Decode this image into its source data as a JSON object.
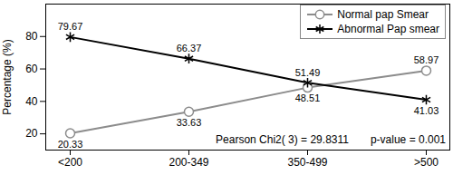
{
  "chart_data": {
    "type": "line",
    "categories": [
      "<200",
      "200-349",
      "350-499",
      ">500"
    ],
    "ylabel": "Percentage (%)",
    "ylim": [
      10,
      100
    ],
    "yticks": [
      20,
      40,
      60,
      80
    ],
    "series": [
      {
        "name": "Normal pap Smear",
        "color": "#8c8c8c",
        "marker": "circle",
        "values": [
          20.33,
          33.63,
          48.51,
          58.97
        ]
      },
      {
        "name": "Abnormal Pap smear",
        "color": "#000000",
        "marker": "asterisk",
        "values": [
          79.67,
          66.37,
          51.49,
          41.03
        ]
      }
    ],
    "annotations": [
      "Pearson Chi2( 3) = 29.8311",
      "p-value = 0.001"
    ],
    "data_labels": true,
    "legend": "upper right",
    "grid": false
  }
}
